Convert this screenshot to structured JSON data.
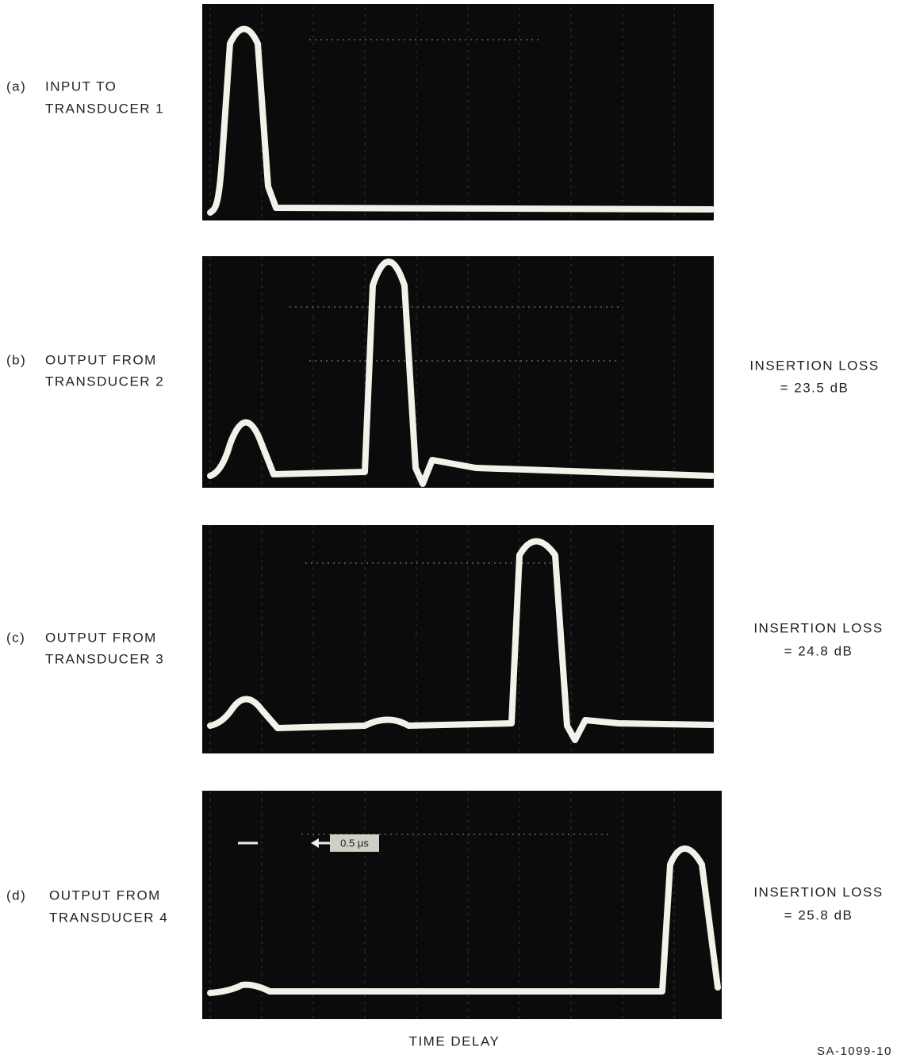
{
  "panels": [
    {
      "label": "(a)",
      "caption": [
        "INPUT TO",
        "TRANSDUCER 1"
      ]
    },
    {
      "label": "(b)",
      "caption": [
        "OUTPUT FROM",
        "TRANSDUCER 2"
      ],
      "insertion_loss": [
        "INSERTION LOSS",
        "= 23.5 dB"
      ]
    },
    {
      "label": "(c)",
      "caption": [
        "OUTPUT FROM",
        "TRANSDUCER 3"
      ],
      "insertion_loss": [
        "INSERTION LOSS",
        "= 24.8 dB"
      ]
    },
    {
      "label": "(d)",
      "caption": [
        "OUTPUT FROM",
        "TRANSDUCER 4"
      ],
      "insertion_loss": [
        "INSERTION LOSS",
        "= 25.8 dB"
      ],
      "scale_marker": "0.5 μs"
    }
  ],
  "x_axis_label": "TIME DELAY",
  "figure_id": "SA-1099-10"
}
